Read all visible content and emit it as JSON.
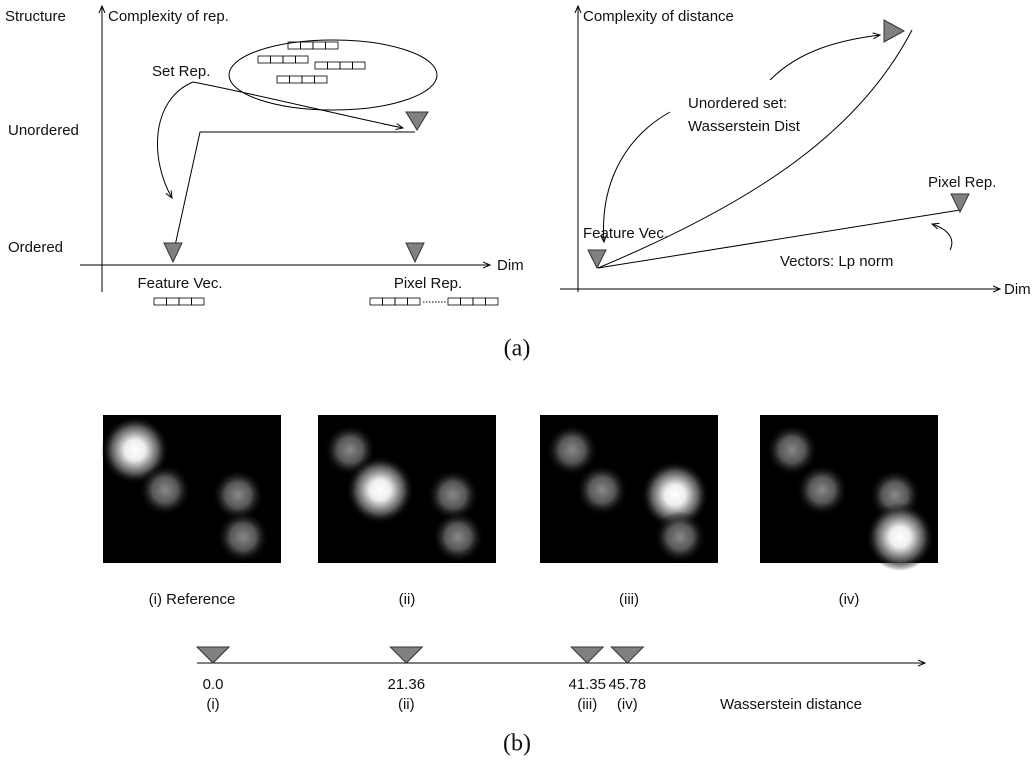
{
  "panel_a": {
    "left": {
      "structure_label": "Structure",
      "y_axis_label": "Complexity of rep.",
      "x_axis_label": "Dim",
      "levels": [
        "Unordered",
        "Ordered"
      ],
      "annotation": "Set Rep.",
      "points": [
        "Feature Vec.",
        "Pixel Rep."
      ]
    },
    "right": {
      "y_axis_label": "Complexity of distance",
      "x_axis_label": "Dim",
      "annotations": [
        "Unordered set:",
        "Wasserstein Dist",
        "Vectors: Lp norm"
      ],
      "points": [
        "Feature Vec.",
        "Pixel Rep."
      ]
    },
    "caption": "(a)"
  },
  "panel_b": {
    "images": [
      "(i) Reference",
      "(ii)",
      "(iii)",
      "(iv)"
    ],
    "distances": [
      {
        "value": 0,
        "label": "0.0"
      },
      {
        "value": 21.36,
        "label": "21.36"
      },
      {
        "value": 41.35,
        "label": "41.35"
      },
      {
        "value": 45.78,
        "label": "45.78"
      }
    ],
    "markers": [
      "(i)",
      "(ii)",
      "(iii)",
      "(iv)"
    ],
    "axis_label": "Wasserstein distance",
    "caption": "(b)"
  }
}
